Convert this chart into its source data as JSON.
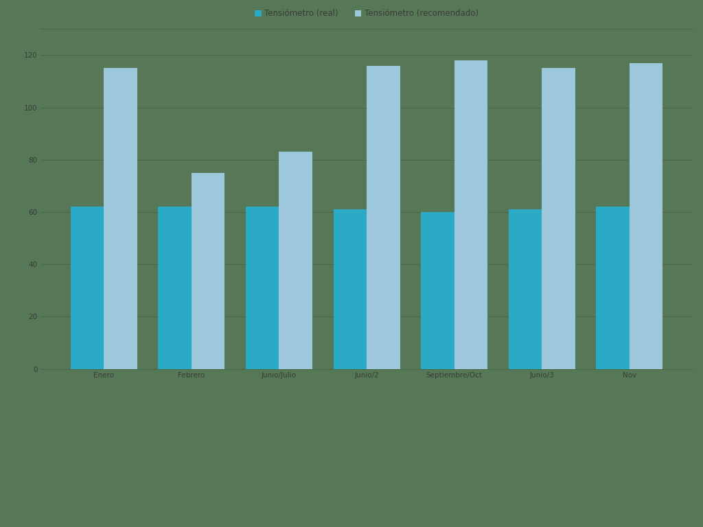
{
  "categories": [
    "Enero",
    "Febrero",
    "Junio/Julio",
    "Junio/2",
    "Septiembre/Oct",
    "Junio/3",
    "Nov"
  ],
  "series1_label": "Tensiómetro (real)",
  "series2_label": "Tensiómetro (recomendado)",
  "series1_values": [
    62,
    62,
    62,
    61,
    60,
    61,
    62
  ],
  "series2_values": [
    115,
    75,
    83,
    116,
    118,
    115,
    117
  ],
  "series1_color": "#2BAAC8",
  "series2_color": "#9DC8DC",
  "background_color": "#567856",
  "grid_color": "#486848",
  "text_color": "#3A3A3A",
  "ylim": [
    0,
    130
  ],
  "yticks": [
    0,
    20,
    40,
    60,
    80,
    100,
    120
  ],
  "bar_width": 0.38,
  "legend_fontsize": 8.5,
  "tick_fontsize": 7.5
}
